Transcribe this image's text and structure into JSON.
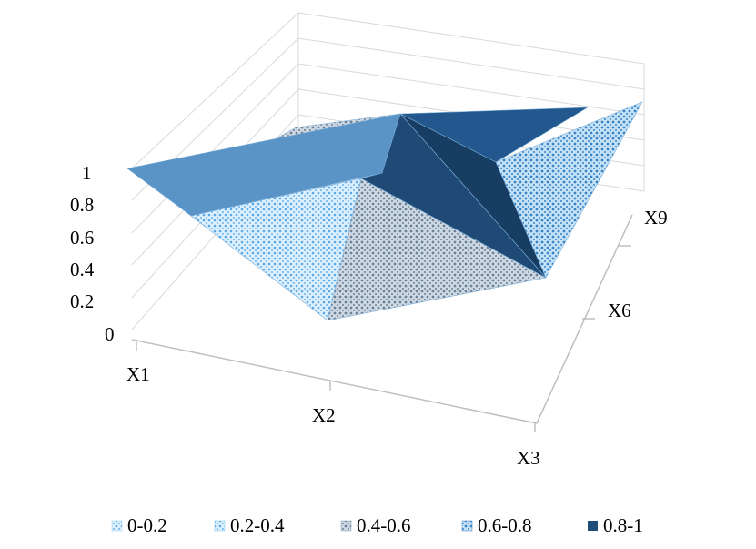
{
  "chart_data": {
    "type": "surface",
    "title": "",
    "xlabel": "",
    "ylabel": "",
    "zlabel": "",
    "x_categories": [
      "X1",
      "X2",
      "X3"
    ],
    "y_series": [
      "X9",
      "X6"
    ],
    "z_ticks": [
      "0",
      "0.2",
      "0.4",
      "0.6",
      "0.8",
      "1"
    ],
    "zlim": [
      0,
      1
    ],
    "legend": {
      "position": "bottom",
      "items": [
        {
          "label": "0-0.2",
          "color": "#9fd3f2"
        },
        {
          "label": "0.2-0.4",
          "color": "#7cc0ea"
        },
        {
          "label": "0.4-0.6",
          "color": "#8a9fb6"
        },
        {
          "label": "0.6-0.8",
          "color": "#3f82c0"
        },
        {
          "label": "0.8-1",
          "color": "#1f4e79"
        }
      ]
    },
    "gridlines": true
  }
}
